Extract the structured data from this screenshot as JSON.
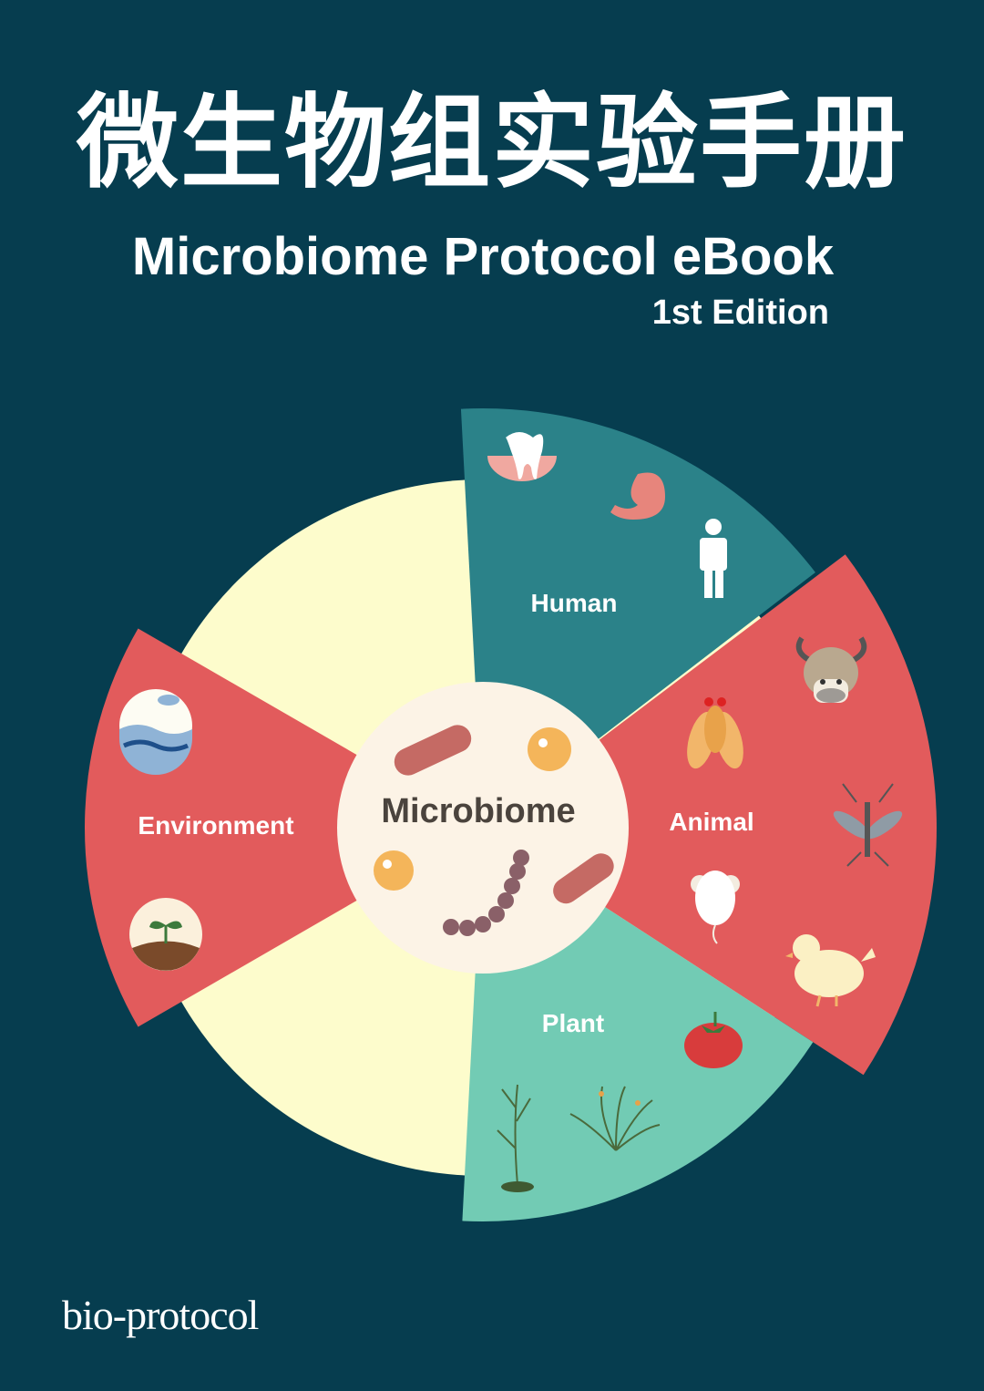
{
  "cover": {
    "title_cn": "微生物组实验手册",
    "title_en": "Microbiome Protocol eBook",
    "edition": "1st Edition",
    "publisher_logo": "bio-protocol"
  },
  "diagram": {
    "center_label": "Microbiome",
    "sectors": [
      {
        "label": "Human",
        "color": "#2b8289",
        "icons": [
          "tooth-icon",
          "stomach-icon",
          "person-icon"
        ]
      },
      {
        "label": "Animal",
        "color": "#e25b5c",
        "icons": [
          "yak-icon",
          "fruit-fly-icon",
          "mosquito-icon",
          "mouse-icon",
          "chicken-icon"
        ]
      },
      {
        "label": "Plant",
        "color": "#72cbb4",
        "icons": [
          "tomato-icon",
          "arabidopsis-icon",
          "grass-icon"
        ]
      },
      {
        "label": "Environment",
        "color": "#e25b5c",
        "icons": [
          "ocean-icon",
          "seedling-soil-icon"
        ]
      }
    ],
    "background_ring_color": "#fdfccc",
    "center_color": "#fcf3e6",
    "background_color": "#063d4f"
  }
}
